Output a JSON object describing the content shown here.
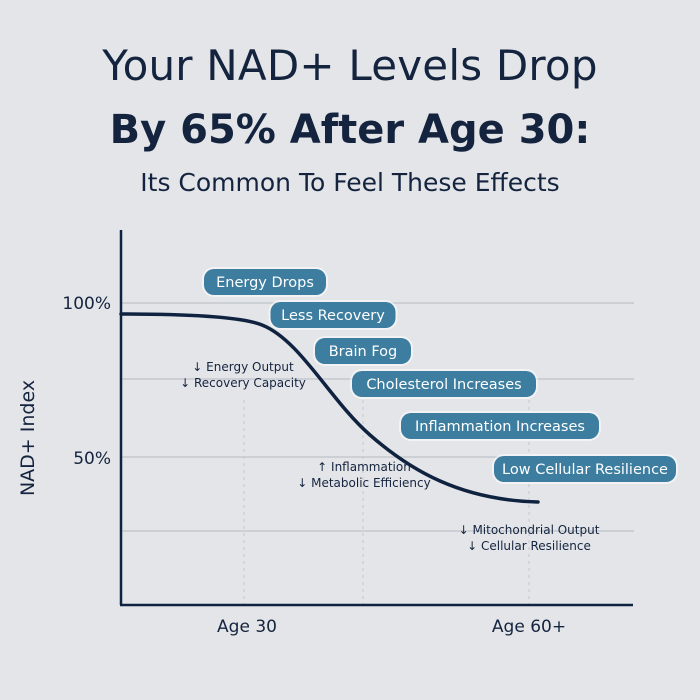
{
  "header": {
    "line1": "Your NAD+ Levels Drop",
    "line2": "By 65% After Age 30:",
    "line3": "Its Common To Feel These Effects"
  },
  "chart_data": {
    "type": "line",
    "ylabel": "NAD+ Index",
    "x_ticks": [
      "Age 30",
      "Age 60+"
    ],
    "y_ticks": [
      "100%",
      "50%"
    ],
    "grid": true,
    "colors": {
      "line": "#0f2340",
      "pill": "#3c7da0",
      "grid": "#c4c8ce"
    },
    "series": [
      {
        "points": [
          [
            0.0,
            0.94
          ],
          [
            0.25,
            0.88
          ],
          [
            0.5,
            0.62
          ],
          [
            0.7,
            0.42
          ],
          [
            1.0,
            0.34
          ]
        ]
      }
    ],
    "pills": [
      "Energy Drops",
      "Less Recovery",
      "Brain Fog",
      "Cholesterol Increases",
      "Inflammation Increases",
      "Low Cellular Resilience"
    ],
    "notes": [
      [
        "↓ Energy Output",
        "↓ Recovery Capacity"
      ],
      [
        "↑ Inflammation",
        "↓ Metabolic Efficiency"
      ],
      [
        "↓ Mitochondrial Output",
        "↓ Cellular Resilience"
      ]
    ]
  }
}
